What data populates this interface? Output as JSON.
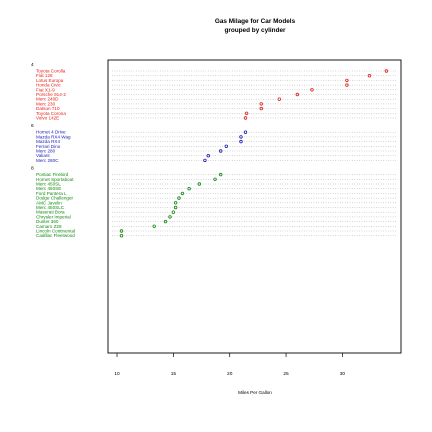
{
  "chart_data": {
    "type": "dot",
    "title": "Gas Milage for Car Models",
    "subtitle": "grouped by cylinder",
    "xlabel": "Miles Per Gallon",
    "xlim": [
      9.2,
      35.2
    ],
    "xticks": [
      10,
      15,
      20,
      25,
      30
    ],
    "grid": "dotted",
    "colors": {
      "4": "#e8211b",
      "6": "#1a1ab8",
      "8": "#138a13"
    },
    "groups": [
      {
        "name": "4",
        "cars": [
          {
            "model": "Toyota Corolla",
            "mpg": 33.9
          },
          {
            "model": "Fiat 128",
            "mpg": 32.4
          },
          {
            "model": "Lotus Europa",
            "mpg": 30.4
          },
          {
            "model": "Honda Civic",
            "mpg": 30.4
          },
          {
            "model": "Fiat X1-9",
            "mpg": 27.3
          },
          {
            "model": "Porsche 914-2",
            "mpg": 26.0
          },
          {
            "model": "Merc 240D",
            "mpg": 24.4
          },
          {
            "model": "Merc 230",
            "mpg": 22.8
          },
          {
            "model": "Datsun 710",
            "mpg": 22.8
          },
          {
            "model": "Toyota Corona",
            "mpg": 21.5
          },
          {
            "model": "Volvo 142E",
            "mpg": 21.4
          }
        ]
      },
      {
        "name": "6",
        "cars": [
          {
            "model": "Hornet 4 Drive",
            "mpg": 21.4
          },
          {
            "model": "Mazda RX4 Wag",
            "mpg": 21.0
          },
          {
            "model": "Mazda RX4",
            "mpg": 21.0
          },
          {
            "model": "Ferrari Dino",
            "mpg": 19.7
          },
          {
            "model": "Merc 280",
            "mpg": 19.2
          },
          {
            "model": "Valiant",
            "mpg": 18.1
          },
          {
            "model": "Merc 280C",
            "mpg": 17.8
          }
        ]
      },
      {
        "name": "8",
        "cars": [
          {
            "model": "Pontiac Firebird",
            "mpg": 19.2
          },
          {
            "model": "Hornet Sportabout",
            "mpg": 18.7
          },
          {
            "model": "Merc 450SL",
            "mpg": 17.3
          },
          {
            "model": "Merc 450SE",
            "mpg": 16.4
          },
          {
            "model": "Ford Pantera L",
            "mpg": 15.8
          },
          {
            "model": "Dodge Challenger",
            "mpg": 15.5
          },
          {
            "model": "AMC Javelin",
            "mpg": 15.2
          },
          {
            "model": "Merc 450SLC",
            "mpg": 15.2
          },
          {
            "model": "Maserati Bora",
            "mpg": 15.0
          },
          {
            "model": "Chrysler Imperial",
            "mpg": 14.7
          },
          {
            "model": "Duster 360",
            "mpg": 14.3
          },
          {
            "model": "Camaro Z28",
            "mpg": 13.3
          },
          {
            "model": "Lincoln Continental",
            "mpg": 10.4
          },
          {
            "model": "Cadillac Fleetwood",
            "mpg": 10.4
          }
        ]
      }
    ]
  }
}
